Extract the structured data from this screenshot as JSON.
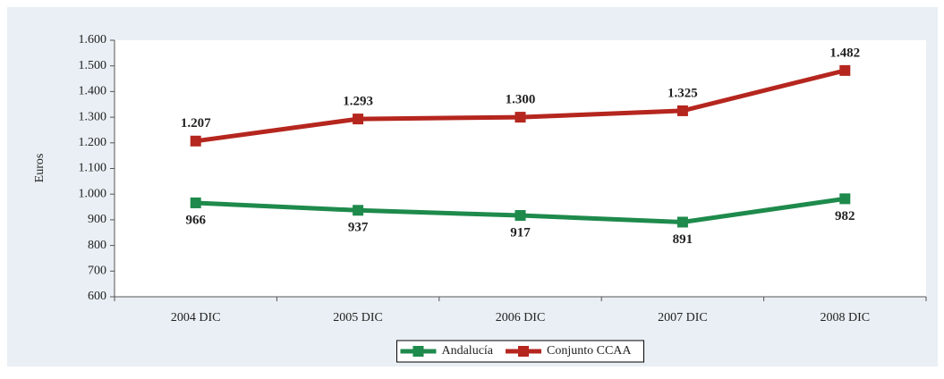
{
  "chart_data": {
    "type": "line",
    "y_label": "Euros",
    "categories": [
      "2004 DIC",
      "2005 DIC",
      "2006 DIC",
      "2007 DIC",
      "2008 DIC"
    ],
    "series": [
      {
        "name": "Andalucía",
        "color": "#1e8a4c",
        "values": [
          966,
          937,
          917,
          891,
          982
        ]
      },
      {
        "name": "Conjunto CCAA",
        "color": "#b5261e",
        "values": [
          1207,
          1293,
          1300,
          1325,
          1482
        ],
        "value_labels": [
          "1.207",
          "1.293",
          "1.300",
          "1.325",
          "1.482"
        ]
      }
    ],
    "ylim": [
      600,
      1600
    ],
    "yticks": [
      600,
      700,
      800,
      900,
      {
        "value": 1000,
        "label": "1.000"
      },
      {
        "value": 1100,
        "label": "1.100"
      },
      {
        "value": 1200,
        "label": "1.200"
      },
      {
        "value": 1300,
        "label": "1.300"
      },
      {
        "value": 1400,
        "label": "1.400"
      },
      {
        "value": 1500,
        "label": "1.500"
      },
      {
        "value": 1600,
        "label": "1.600"
      }
    ],
    "legend": "bottom"
  }
}
